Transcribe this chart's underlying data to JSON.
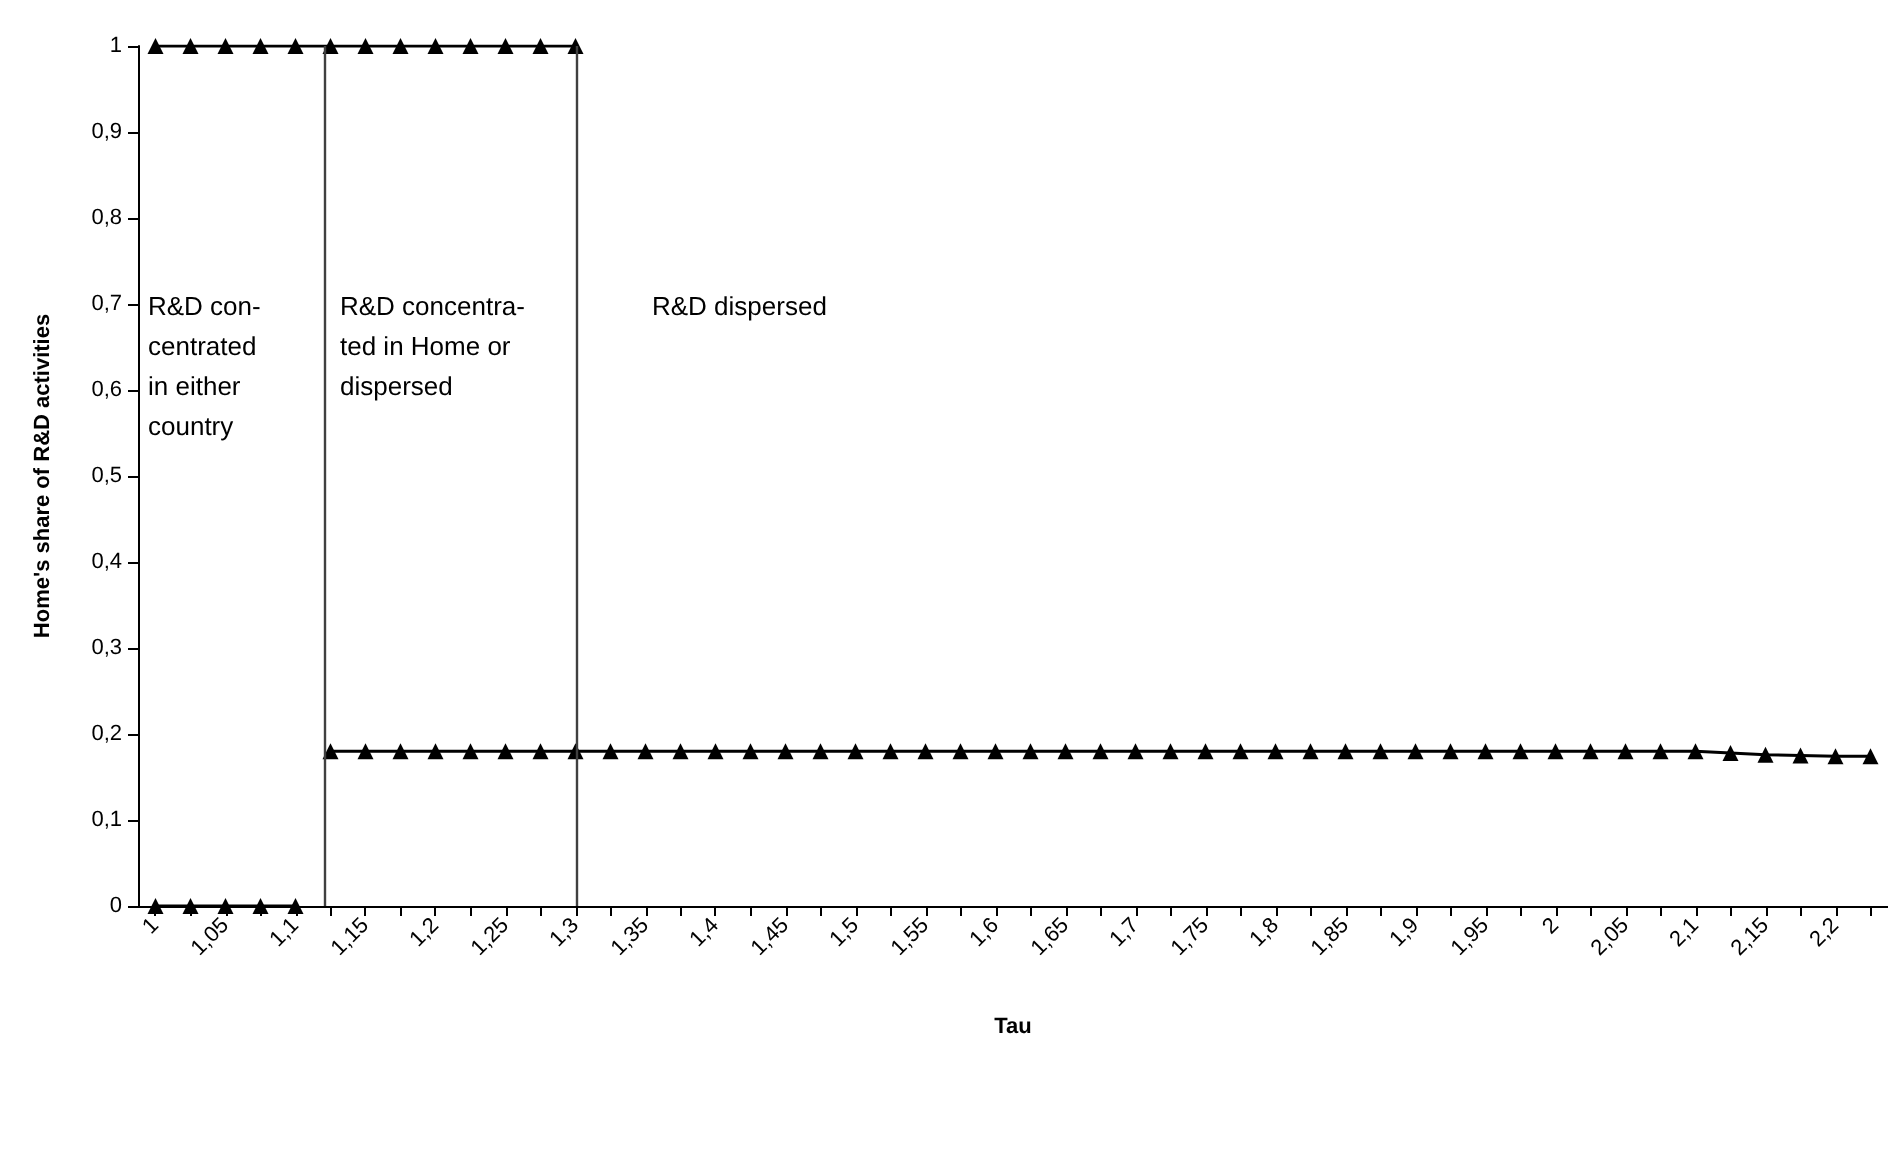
{
  "chart_data": {
    "type": "line",
    "xlabel": "Tau",
    "ylabel": "Home's share of R&D activities",
    "x": [
      1,
      1.025,
      1.05,
      1.075,
      1.1,
      1.125,
      1.15,
      1.175,
      1.2,
      1.225,
      1.25,
      1.275,
      1.3,
      1.325,
      1.35,
      1.375,
      1.4,
      1.425,
      1.45,
      1.475,
      1.5,
      1.525,
      1.55,
      1.575,
      1.6,
      1.625,
      1.65,
      1.675,
      1.7,
      1.725,
      1.75,
      1.775,
      1.8,
      1.825,
      1.85,
      1.875,
      1.9,
      1.925,
      1.95,
      1.975,
      2,
      2.025,
      2.05,
      2.075,
      2.1,
      2.125,
      2.15,
      2.175,
      2.2,
      2.225
    ],
    "series": [
      {
        "color": "#000000",
        "values": [
          1,
          1,
          1,
          1,
          1,
          1,
          1,
          1,
          1,
          1,
          1,
          1,
          1,
          null,
          null,
          null,
          null,
          null,
          null,
          null,
          null,
          null,
          null,
          null,
          null,
          null,
          null,
          null,
          null,
          null,
          null,
          null,
          null,
          null,
          null,
          null,
          null,
          null,
          null,
          null,
          null,
          null,
          null,
          null,
          null,
          null,
          null,
          null,
          null,
          null
        ]
      },
      {
        "color": "#000000",
        "values": [
          0,
          0,
          0,
          0,
          0,
          null,
          null,
          null,
          null,
          null,
          null,
          null,
          null,
          null,
          null,
          null,
          null,
          null,
          null,
          null,
          null,
          null,
          null,
          null,
          null,
          null,
          null,
          null,
          null,
          null,
          null,
          null,
          null,
          null,
          null,
          null,
          null,
          null,
          null,
          null,
          null,
          null,
          null,
          null,
          null,
          null,
          null,
          null,
          null,
          null
        ]
      },
      {
        "color": "#000000",
        "values": [
          null,
          null,
          null,
          null,
          null,
          0.18,
          0.18,
          0.18,
          0.18,
          0.18,
          0.18,
          0.18,
          0.18,
          0.18,
          0.18,
          0.18,
          0.18,
          0.18,
          0.18,
          0.18,
          0.18,
          0.18,
          0.18,
          0.18,
          0.18,
          0.18,
          0.18,
          0.18,
          0.18,
          0.18,
          0.18,
          0.18,
          0.18,
          0.18,
          0.18,
          0.18,
          0.18,
          0.18,
          0.18,
          0.18,
          0.18,
          0.18,
          0.18,
          0.18,
          0.18,
          0.178,
          0.176,
          0.175,
          0.174,
          0.174
        ]
      }
    ],
    "xlim": [
      0.9875,
      2.2375
    ],
    "xticks": [
      {
        "value": 1,
        "label": "1"
      },
      {
        "value": 1.025,
        "label": null
      },
      {
        "value": 1.05,
        "label": "1,05"
      },
      {
        "value": 1.075,
        "label": null
      },
      {
        "value": 1.1,
        "label": "1,1"
      },
      {
        "value": 1.125,
        "label": null
      },
      {
        "value": 1.15,
        "label": "1,15"
      },
      {
        "value": 1.175,
        "label": null
      },
      {
        "value": 1.2,
        "label": "1,2"
      },
      {
        "value": 1.225,
        "label": null
      },
      {
        "value": 1.25,
        "label": "1,25"
      },
      {
        "value": 1.275,
        "label": null
      },
      {
        "value": 1.3,
        "label": "1,3"
      },
      {
        "value": 1.325,
        "label": null
      },
      {
        "value": 1.35,
        "label": "1,35"
      },
      {
        "value": 1.375,
        "label": null
      },
      {
        "value": 1.4,
        "label": "1,4"
      },
      {
        "value": 1.425,
        "label": null
      },
      {
        "value": 1.45,
        "label": "1,45"
      },
      {
        "value": 1.475,
        "label": null
      },
      {
        "value": 1.5,
        "label": "1,5"
      },
      {
        "value": 1.525,
        "label": null
      },
      {
        "value": 1.55,
        "label": "1,55"
      },
      {
        "value": 1.575,
        "label": null
      },
      {
        "value": 1.6,
        "label": "1,6"
      },
      {
        "value": 1.625,
        "label": null
      },
      {
        "value": 1.65,
        "label": "1,65"
      },
      {
        "value": 1.675,
        "label": null
      },
      {
        "value": 1.7,
        "label": "1,7"
      },
      {
        "value": 1.725,
        "label": null
      },
      {
        "value": 1.75,
        "label": "1,75"
      },
      {
        "value": 1.775,
        "label": null
      },
      {
        "value": 1.8,
        "label": "1,8"
      },
      {
        "value": 1.825,
        "label": null
      },
      {
        "value": 1.85,
        "label": "1,85"
      },
      {
        "value": 1.875,
        "label": null
      },
      {
        "value": 1.9,
        "label": "1,9"
      },
      {
        "value": 1.925,
        "label": null
      },
      {
        "value": 1.95,
        "label": "1,95"
      },
      {
        "value": 1.975,
        "label": null
      },
      {
        "value": 2,
        "label": "2"
      },
      {
        "value": 2.025,
        "label": null
      },
      {
        "value": 2.05,
        "label": "2,05"
      },
      {
        "value": 2.075,
        "label": null
      },
      {
        "value": 2.1,
        "label": "2,1"
      },
      {
        "value": 2.125,
        "label": null
      },
      {
        "value": 2.15,
        "label": "2,15"
      },
      {
        "value": 2.175,
        "label": null
      },
      {
        "value": 2.2,
        "label": "2,2"
      },
      {
        "value": 2.225,
        "label": null
      }
    ],
    "ylim": [
      0,
      1
    ],
    "yticks": [
      0,
      {
        "value": 0.1,
        "label": "0,1"
      },
      {
        "value": 0.2,
        "label": "0,2"
      },
      {
        "value": 0.3,
        "label": "0,3"
      },
      {
        "value": 0.4,
        "label": "0,4"
      },
      {
        "value": 0.5,
        "label": "0,5"
      },
      {
        "value": 0.6,
        "label": "0,6"
      },
      {
        "value": 0.7,
        "label": "0,7"
      },
      {
        "value": 0.8,
        "label": "0,8"
      },
      {
        "value": 0.9,
        "label": "0,9"
      },
      1
    ],
    "ref_lines": [
      {
        "axis": "x",
        "value": 1.12,
        "color": "#404040"
      },
      {
        "axis": "x",
        "value": 1.3,
        "color": "#404040"
      }
    ],
    "annotations": [
      "R&D con-\ncentrated\nin either\ncountry",
      "R&D concentra-\nted in Home or\ndispersed",
      "R&D dispersed"
    ],
    "marker": "triangle",
    "line_style": "solid",
    "grid": false
  }
}
